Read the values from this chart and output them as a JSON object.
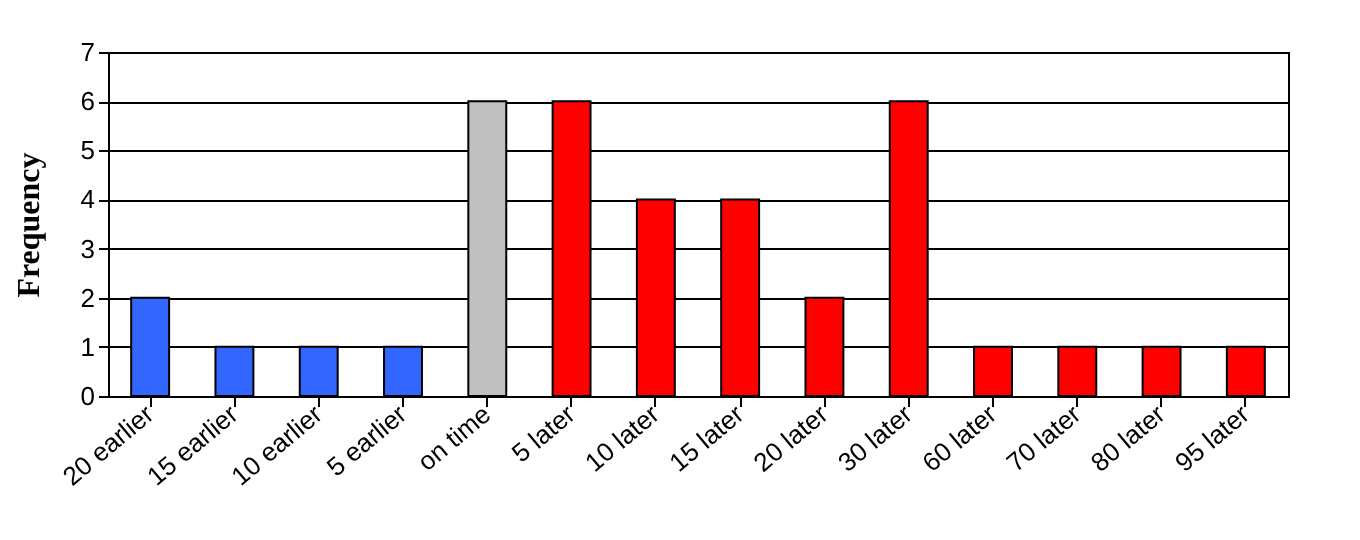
{
  "chart_data": {
    "type": "bar",
    "ylabel": "Frequency",
    "categories": [
      "20 earlier",
      "15 earlier",
      "10 earlier",
      "5 earlier",
      "on time",
      "5 later",
      "10 later",
      "15 later",
      "20 later",
      "30 later",
      "60 later",
      "70 later",
      "80 later",
      "95 later"
    ],
    "values": [
      2,
      1,
      1,
      1,
      6,
      6,
      4,
      4,
      2,
      6,
      1,
      1,
      1,
      1
    ],
    "colors": [
      "#3366ff",
      "#3366ff",
      "#3366ff",
      "#3366ff",
      "#c0c0c0",
      "#ff0000",
      "#ff0000",
      "#ff0000",
      "#ff0000",
      "#ff0000",
      "#ff0000",
      "#ff0000",
      "#ff0000",
      "#ff0000"
    ],
    "ylim": [
      0,
      7
    ],
    "yticks": [
      0,
      1,
      2,
      3,
      4,
      5,
      6,
      7
    ],
    "grid": "y"
  }
}
